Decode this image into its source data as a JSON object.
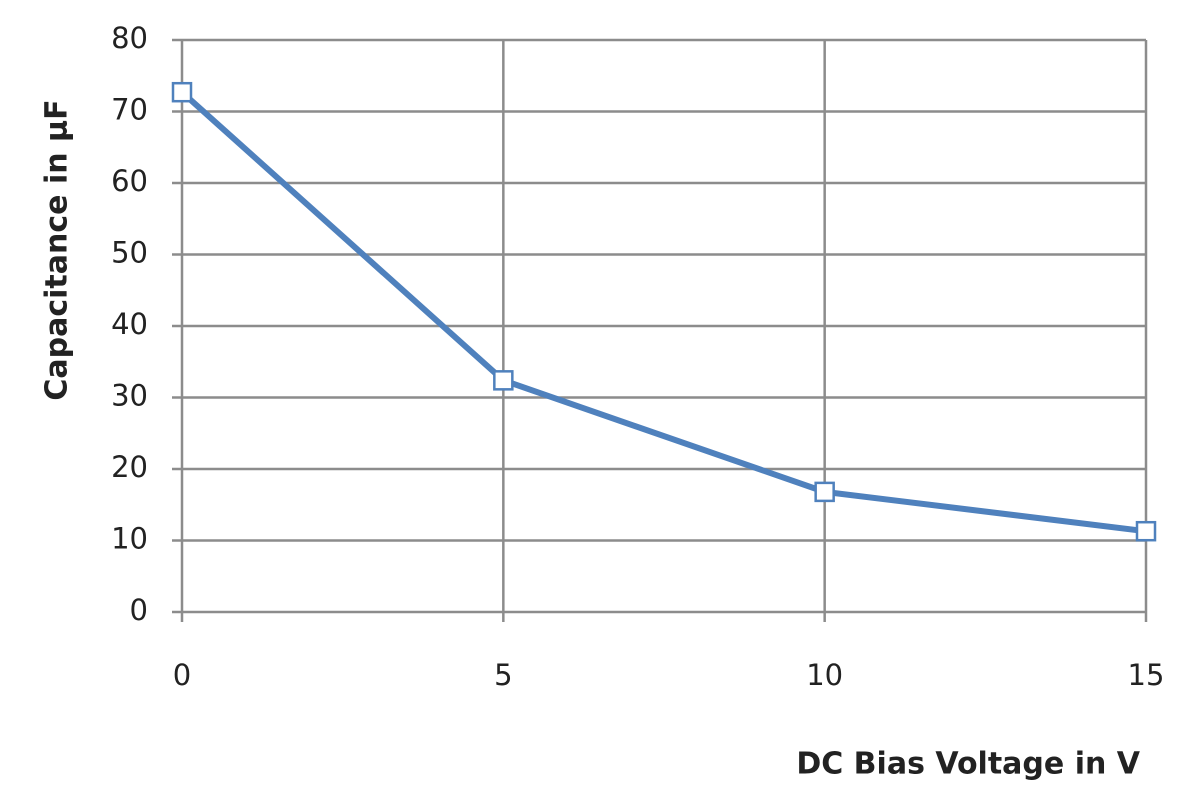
{
  "chart_data": {
    "type": "line",
    "x_label": "DC Bias Voltage in V",
    "y_label": "Capacitance in µF",
    "x": [
      0,
      5,
      10,
      15
    ],
    "series": [
      {
        "color": "#4f81bd",
        "values": [
          72.7,
          32.4,
          16.8,
          11.3
        ]
      }
    ],
    "xlim": [
      0,
      15
    ],
    "xticks": [
      0,
      5,
      10,
      15
    ],
    "ylim": [
      0,
      80
    ],
    "yticks": [
      0,
      10,
      20,
      30,
      40,
      50,
      60,
      70,
      80
    ],
    "grid": true,
    "marker": "square"
  }
}
